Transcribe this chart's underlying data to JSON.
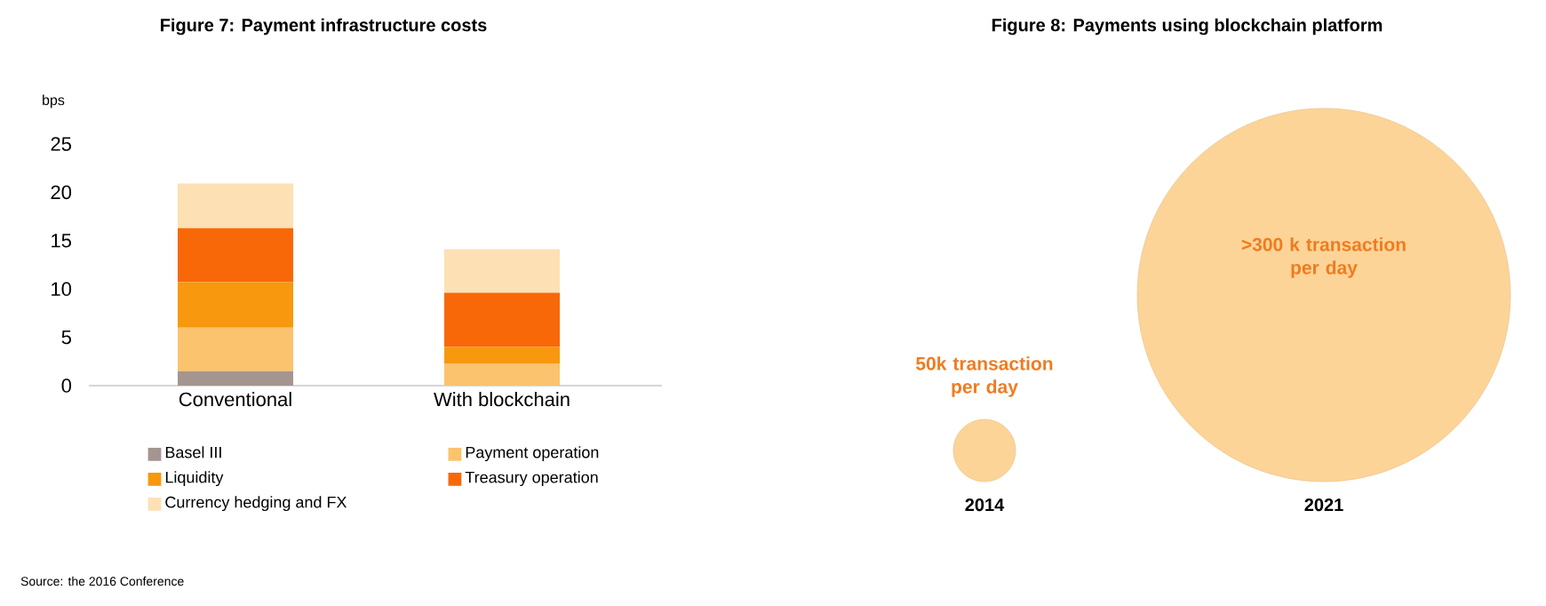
{
  "chart_data": [
    {
      "type": "bar",
      "title": "Figure 7: Payment infrastructure costs",
      "ylabel": "bps",
      "stacked": true,
      "categories": [
        "Conventional",
        "With blockchain"
      ],
      "series": [
        {
          "name": "Basel III",
          "color": "#a59590",
          "values": [
            1.5,
            0
          ]
        },
        {
          "name": "Payment operation",
          "color": "#fbc36d",
          "values": [
            4.5,
            2.3
          ]
        },
        {
          "name": "Liquidity",
          "color": "#f7980f",
          "values": [
            4.7,
            1.7
          ]
        },
        {
          "name": "Treasury operation",
          "color": "#f86808",
          "values": [
            5.6,
            5.6
          ]
        },
        {
          "name": "Currency hedging and FX",
          "color": "#fde0b4",
          "values": [
            4.6,
            4.5
          ]
        }
      ],
      "ylim": [
        0,
        25
      ],
      "yticks": [
        0,
        5,
        10,
        15,
        20,
        25
      ],
      "legend": "bottom",
      "annotations": [
        "Source: the 2016 Conference"
      ]
    },
    {
      "type": "other",
      "title": "Figure 8: Payments using blockchain platform",
      "categories": [
        "2014",
        "2021"
      ],
      "values": [
        50,
        300
      ],
      "color": "#fdd497",
      "value_labels": [
        "50k transaction per day",
        ">300 k transaction per day"
      ]
    }
  ]
}
